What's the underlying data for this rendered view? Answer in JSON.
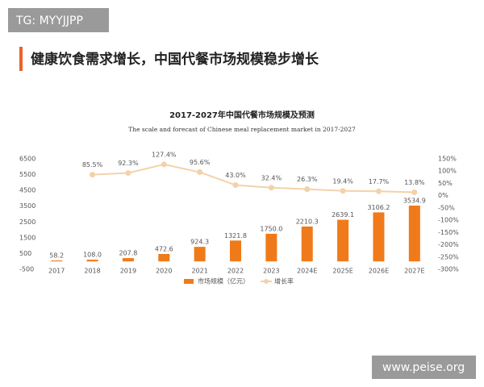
{
  "watermark": "TG: MYYJJPP",
  "header": {
    "title": "健康饮食需求增长，中国代餐市场规模稳步增长"
  },
  "footer": {
    "site": "www.peise.org"
  },
  "chart_data": {
    "type": "combo",
    "title": "2017-2027年中国代餐市场规模及预测",
    "subtitle": "The scale and forecast of Chinese meal replacement market in 2017-2027",
    "categories": [
      "2017",
      "2018",
      "2019",
      "2020",
      "2021",
      "2022",
      "2023",
      "2024E",
      "2025E",
      "2026E",
      "2027E"
    ],
    "series": [
      {
        "name": "市场规模（亿元）",
        "type": "bar",
        "color": "#f07a1a",
        "values": [
          58.2,
          108.0,
          207.8,
          472.6,
          924.3,
          1321.8,
          1750.0,
          2210.3,
          2639.1,
          3106.2,
          3534.9
        ],
        "value_labels": [
          "58.2",
          "108.0",
          "207.8",
          "472.6",
          "924.3",
          "1321.8",
          "1750.0",
          "2210.3",
          "2639.1",
          "3106.2",
          "3534.9"
        ]
      },
      {
        "name": "增长率",
        "type": "line",
        "axis": "y2",
        "color": "#f3d2a9",
        "values": [
          null,
          85.5,
          92.3,
          127.4,
          95.6,
          43.0,
          32.4,
          26.3,
          19.4,
          17.7,
          13.8
        ],
        "value_labels": [
          null,
          "85.5%",
          "92.3%",
          "127.4%",
          "95.6%",
          "43.0%",
          "32.4%",
          "26.3%",
          "19.4%",
          "17.7%",
          "13.8%"
        ]
      }
    ],
    "ylim": [
      -500,
      6500
    ],
    "yticks": [
      -500,
      500,
      1500,
      2500,
      3500,
      4500,
      5500,
      6500
    ],
    "y2lim": [
      -300,
      150
    ],
    "y2ticks": [
      {
        "value": -300,
        "label": "-300%"
      },
      {
        "value": -250,
        "label": "-250%"
      },
      {
        "value": -200,
        "label": "-200%"
      },
      {
        "value": -150,
        "label": "-150%"
      },
      {
        "value": -100,
        "label": "-100%"
      },
      {
        "value": -50,
        "label": "-50%"
      },
      {
        "value": 0,
        "label": "0%"
      },
      {
        "value": 50,
        "label": "50%"
      },
      {
        "value": 100,
        "label": "100%"
      },
      {
        "value": 150,
        "label": "150%"
      }
    ],
    "grid": false
  }
}
